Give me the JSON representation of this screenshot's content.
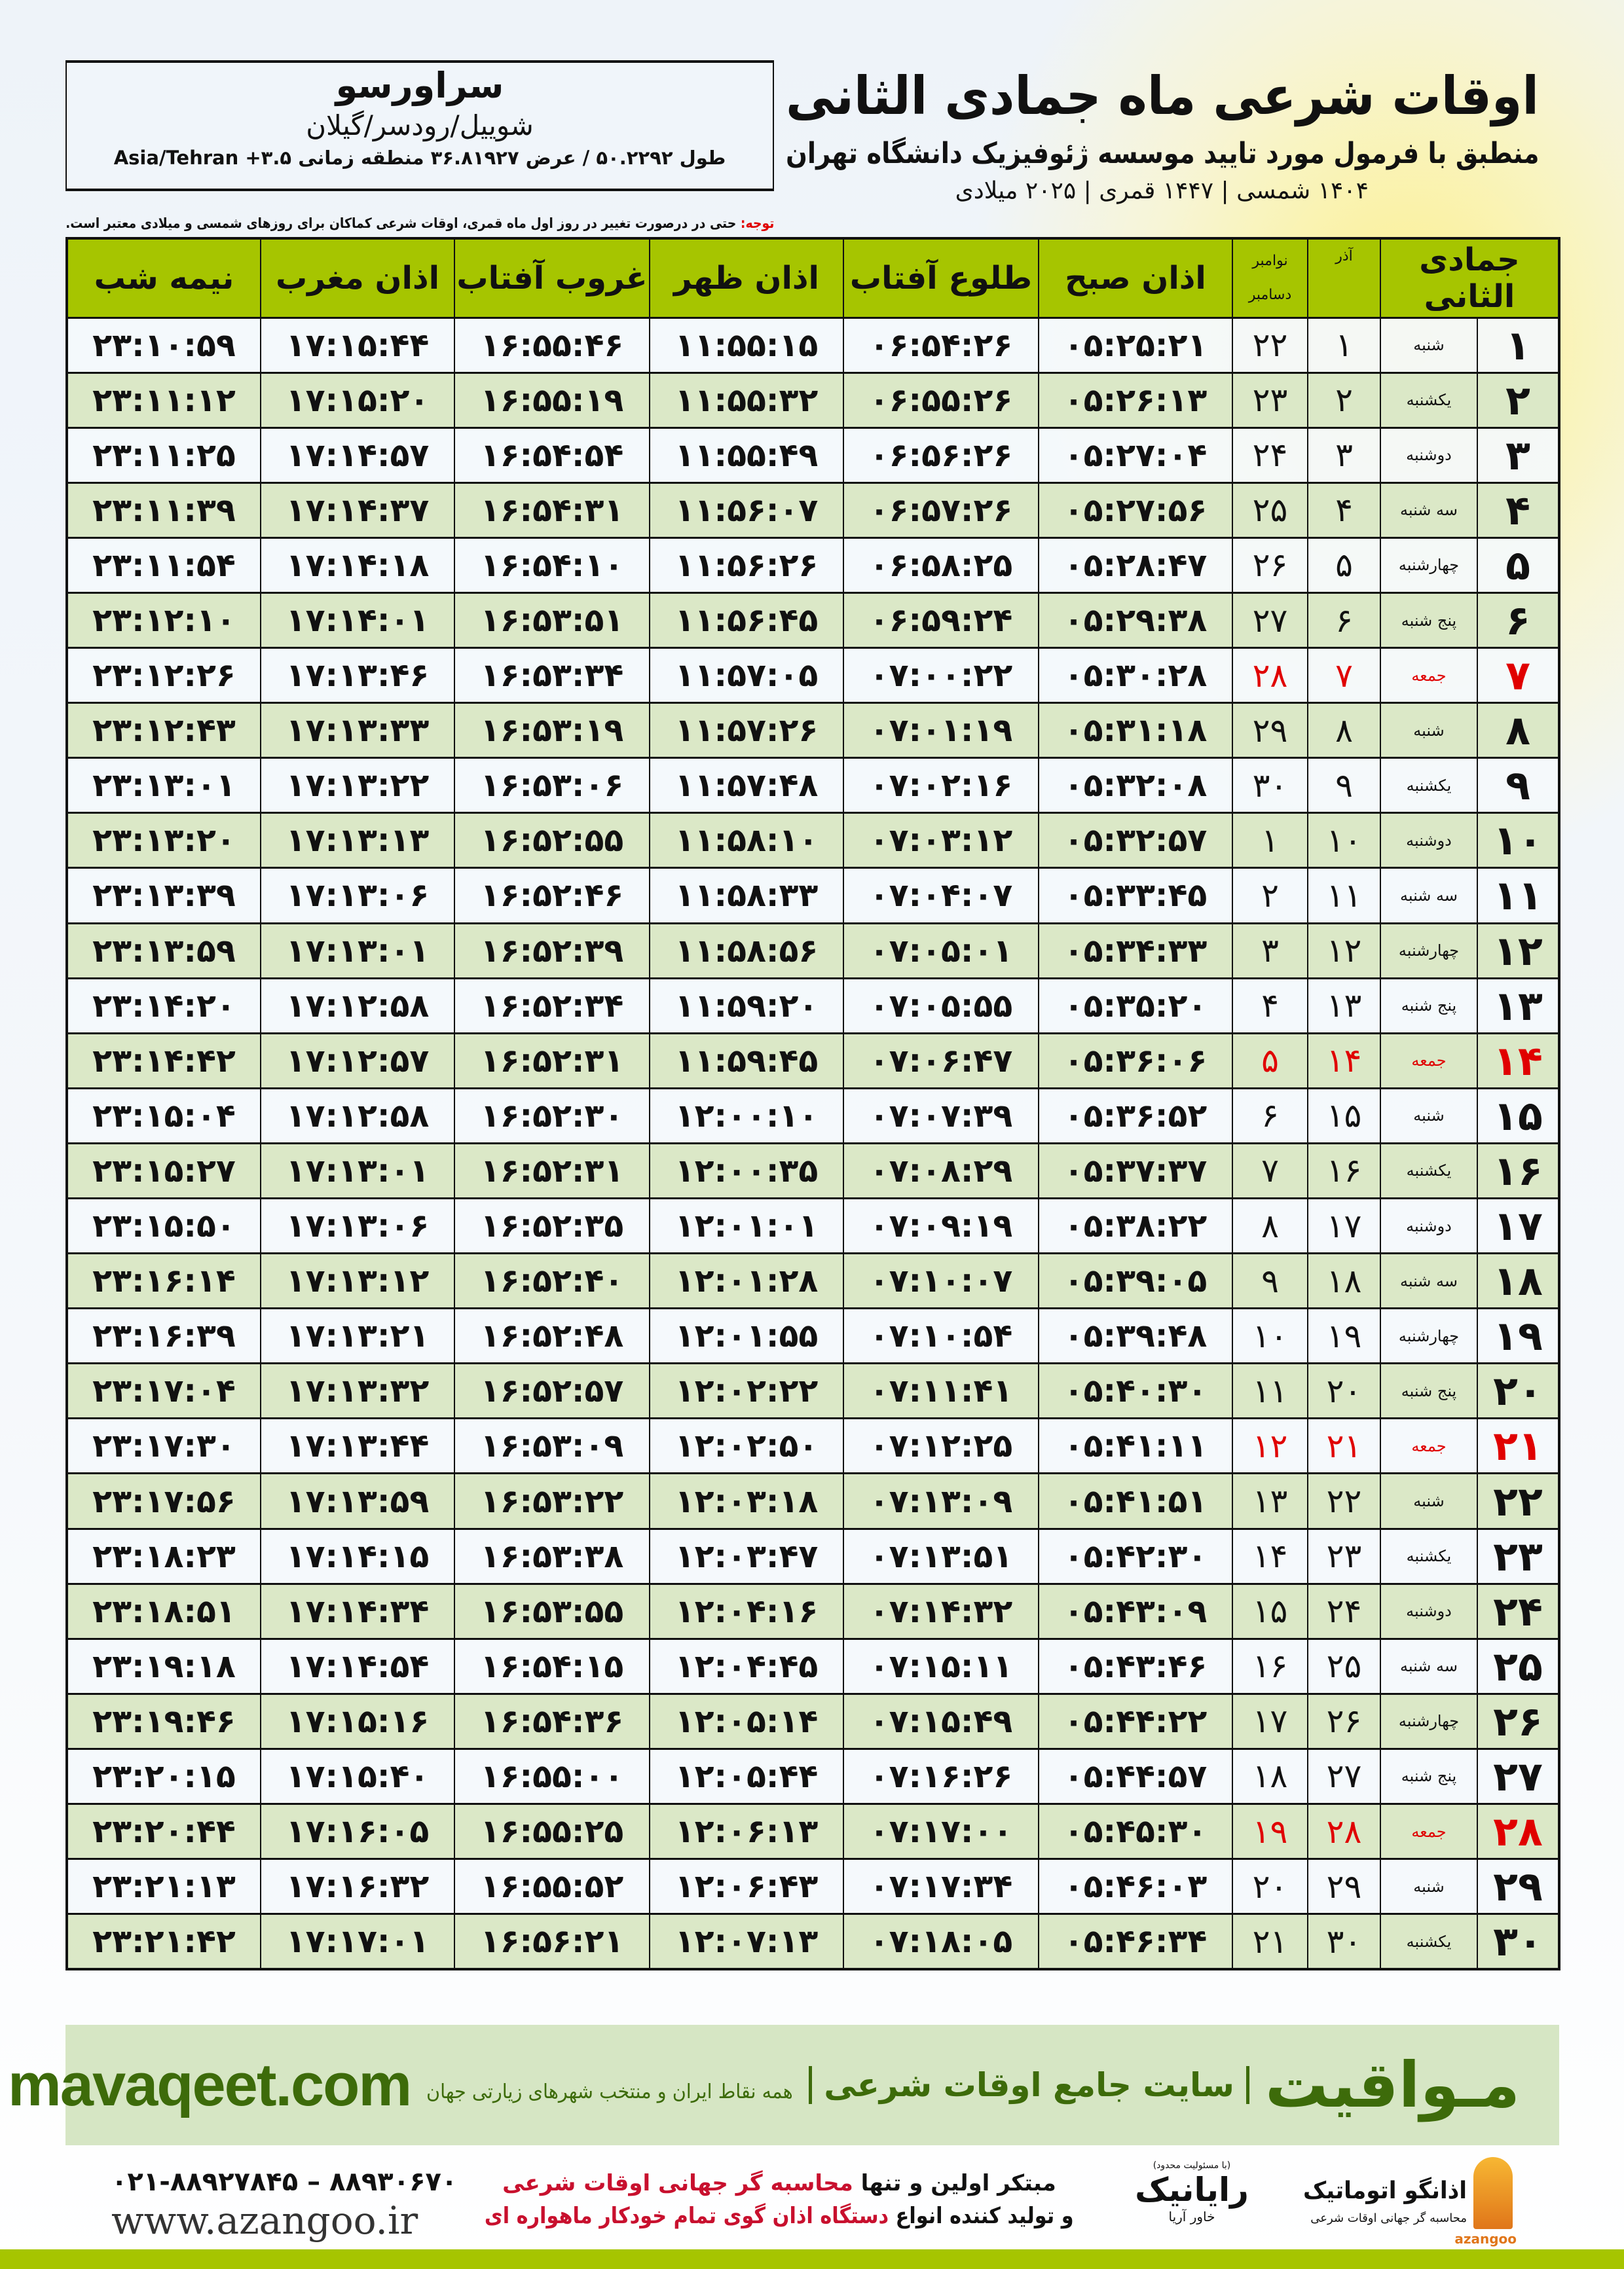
{
  "location": {
    "city": "سراورسو",
    "region": "شوییل/رودسر/گیلان",
    "coordinates": "طول ۵۰.۲۲۹۲ / عرض ۳۶.۸۱۹۲۷ منطقه زمانی ۳.۵+ Asia/Tehran"
  },
  "header": {
    "title": "اوقات شرعی ماه جمادی الثانی",
    "subtitle": "منطبق با فرمول مورد تایید موسسه ژئوفیزیک دانشگاه تهران",
    "years": "۱۴۰۴ شمسی | ۱۴۴۷ قمری | ۲۰۲۵ میلادی"
  },
  "note": {
    "label": "توجه:",
    "text": " حتی در درصورت تغییر در روز اول ماه قمری، اوقات شرعی کماکان برای روزهای شمسی و میلادی معتبر است."
  },
  "colors": {
    "header_green": "#a6c500",
    "holiday_red": "#e00000",
    "alt_row": "#dbe8c7",
    "brand_green": "#3d6b0a"
  },
  "table": {
    "columns": {
      "hijri_month": "جمادی الثانی",
      "azar": "آذر",
      "november": "نوامبر",
      "december": "دسامبر",
      "fajr": "اذان صبح",
      "sunrise": "طلوع آفتاب",
      "dhuhr": "اذان ظهر",
      "sunset": "غروب آفتاب",
      "maghrib": "اذان مغرب",
      "midnight": "نیمه شب"
    },
    "rows": [
      {
        "day": "۱",
        "weekday": "شنبه",
        "azar": "۱",
        "greg": "۲۲",
        "times": [
          "۰۵:۲۵:۲۱",
          "۰۶:۵۴:۲۶",
          "۱۱:۵۵:۱۵",
          "۱۶:۵۵:۴۶",
          "۱۷:۱۵:۴۴",
          "۲۳:۱۰:۵۹"
        ]
      },
      {
        "day": "۲",
        "weekday": "یکشنبه",
        "azar": "۲",
        "greg": "۲۳",
        "times": [
          "۰۵:۲۶:۱۳",
          "۰۶:۵۵:۲۶",
          "۱۱:۵۵:۳۲",
          "۱۶:۵۵:۱۹",
          "۱۷:۱۵:۲۰",
          "۲۳:۱۱:۱۲"
        ]
      },
      {
        "day": "۳",
        "weekday": "دوشنبه",
        "azar": "۳",
        "greg": "۲۴",
        "times": [
          "۰۵:۲۷:۰۴",
          "۰۶:۵۶:۲۶",
          "۱۱:۵۵:۴۹",
          "۱۶:۵۴:۵۴",
          "۱۷:۱۴:۵۷",
          "۲۳:۱۱:۲۵"
        ]
      },
      {
        "day": "۴",
        "weekday": "سه شنبه",
        "azar": "۴",
        "greg": "۲۵",
        "times": [
          "۰۵:۲۷:۵۶",
          "۰۶:۵۷:۲۶",
          "۱۱:۵۶:۰۷",
          "۱۶:۵۴:۳۱",
          "۱۷:۱۴:۳۷",
          "۲۳:۱۱:۳۹"
        ]
      },
      {
        "day": "۵",
        "weekday": "چهارشنبه",
        "azar": "۵",
        "greg": "۲۶",
        "times": [
          "۰۵:۲۸:۴۷",
          "۰۶:۵۸:۲۵",
          "۱۱:۵۶:۲۶",
          "۱۶:۵۴:۱۰",
          "۱۷:۱۴:۱۸",
          "۲۳:۱۱:۵۴"
        ]
      },
      {
        "day": "۶",
        "weekday": "پنج شنبه",
        "azar": "۶",
        "greg": "۲۷",
        "times": [
          "۰۵:۲۹:۳۸",
          "۰۶:۵۹:۲۴",
          "۱۱:۵۶:۴۵",
          "۱۶:۵۳:۵۱",
          "۱۷:۱۴:۰۱",
          "۲۳:۱۲:۱۰"
        ]
      },
      {
        "day": "۷",
        "weekday": "جمعه",
        "azar": "۷",
        "greg": "۲۸",
        "holiday": true,
        "times": [
          "۰۵:۳۰:۲۸",
          "۰۷:۰۰:۲۲",
          "۱۱:۵۷:۰۵",
          "۱۶:۵۳:۳۴",
          "۱۷:۱۳:۴۶",
          "۲۳:۱۲:۲۶"
        ]
      },
      {
        "day": "۸",
        "weekday": "شنبه",
        "azar": "۸",
        "greg": "۲۹",
        "times": [
          "۰۵:۳۱:۱۸",
          "۰۷:۰۱:۱۹",
          "۱۱:۵۷:۲۶",
          "۱۶:۵۳:۱۹",
          "۱۷:۱۳:۳۳",
          "۲۳:۱۲:۴۳"
        ]
      },
      {
        "day": "۹",
        "weekday": "یکشنبه",
        "azar": "۹",
        "greg": "۳۰",
        "times": [
          "۰۵:۳۲:۰۸",
          "۰۷:۰۲:۱۶",
          "۱۱:۵۷:۴۸",
          "۱۶:۵۳:۰۶",
          "۱۷:۱۳:۲۲",
          "۲۳:۱۳:۰۱"
        ]
      },
      {
        "day": "۱۰",
        "weekday": "دوشنبه",
        "azar": "۱۰",
        "greg": "۱",
        "times": [
          "۰۵:۳۲:۵۷",
          "۰۷:۰۳:۱۲",
          "۱۱:۵۸:۱۰",
          "۱۶:۵۲:۵۵",
          "۱۷:۱۳:۱۳",
          "۲۳:۱۳:۲۰"
        ]
      },
      {
        "day": "۱۱",
        "weekday": "سه شنبه",
        "azar": "۱۱",
        "greg": "۲",
        "times": [
          "۰۵:۳۳:۴۵",
          "۰۷:۰۴:۰۷",
          "۱۱:۵۸:۳۳",
          "۱۶:۵۲:۴۶",
          "۱۷:۱۳:۰۶",
          "۲۳:۱۳:۳۹"
        ]
      },
      {
        "day": "۱۲",
        "weekday": "چهارشنبه",
        "azar": "۱۲",
        "greg": "۳",
        "times": [
          "۰۵:۳۴:۳۳",
          "۰۷:۰۵:۰۱",
          "۱۱:۵۸:۵۶",
          "۱۶:۵۲:۳۹",
          "۱۷:۱۳:۰۱",
          "۲۳:۱۳:۵۹"
        ]
      },
      {
        "day": "۱۳",
        "weekday": "پنج شنبه",
        "azar": "۱۳",
        "greg": "۴",
        "times": [
          "۰۵:۳۵:۲۰",
          "۰۷:۰۵:۵۵",
          "۱۱:۵۹:۲۰",
          "۱۶:۵۲:۳۴",
          "۱۷:۱۲:۵۸",
          "۲۳:۱۴:۲۰"
        ]
      },
      {
        "day": "۱۴",
        "weekday": "جمعه",
        "azar": "۱۴",
        "greg": "۵",
        "holiday": true,
        "times": [
          "۰۵:۳۶:۰۶",
          "۰۷:۰۶:۴۷",
          "۱۱:۵۹:۴۵",
          "۱۶:۵۲:۳۱",
          "۱۷:۱۲:۵۷",
          "۲۳:۱۴:۴۲"
        ]
      },
      {
        "day": "۱۵",
        "weekday": "شنبه",
        "azar": "۱۵",
        "greg": "۶",
        "times": [
          "۰۵:۳۶:۵۲",
          "۰۷:۰۷:۳۹",
          "۱۲:۰۰:۱۰",
          "۱۶:۵۲:۳۰",
          "۱۷:۱۲:۵۸",
          "۲۳:۱۵:۰۴"
        ]
      },
      {
        "day": "۱۶",
        "weekday": "یکشنبه",
        "azar": "۱۶",
        "greg": "۷",
        "times": [
          "۰۵:۳۷:۳۷",
          "۰۷:۰۸:۲۹",
          "۱۲:۰۰:۳۵",
          "۱۶:۵۲:۳۱",
          "۱۷:۱۳:۰۱",
          "۲۳:۱۵:۲۷"
        ]
      },
      {
        "day": "۱۷",
        "weekday": "دوشنبه",
        "azar": "۱۷",
        "greg": "۸",
        "times": [
          "۰۵:۳۸:۲۲",
          "۰۷:۰۹:۱۹",
          "۱۲:۰۱:۰۱",
          "۱۶:۵۲:۳۵",
          "۱۷:۱۳:۰۶",
          "۲۳:۱۵:۵۰"
        ]
      },
      {
        "day": "۱۸",
        "weekday": "سه شنبه",
        "azar": "۱۸",
        "greg": "۹",
        "times": [
          "۰۵:۳۹:۰۵",
          "۰۷:۱۰:۰۷",
          "۱۲:۰۱:۲۸",
          "۱۶:۵۲:۴۰",
          "۱۷:۱۳:۱۲",
          "۲۳:۱۶:۱۴"
        ]
      },
      {
        "day": "۱۹",
        "weekday": "چهارشنبه",
        "azar": "۱۹",
        "greg": "۱۰",
        "times": [
          "۰۵:۳۹:۴۸",
          "۰۷:۱۰:۵۴",
          "۱۲:۰۱:۵۵",
          "۱۶:۵۲:۴۸",
          "۱۷:۱۳:۲۱",
          "۲۳:۱۶:۳۹"
        ]
      },
      {
        "day": "۲۰",
        "weekday": "پنج شنبه",
        "azar": "۲۰",
        "greg": "۱۱",
        "times": [
          "۰۵:۴۰:۳۰",
          "۰۷:۱۱:۴۱",
          "۱۲:۰۲:۲۲",
          "۱۶:۵۲:۵۷",
          "۱۷:۱۳:۳۲",
          "۲۳:۱۷:۰۴"
        ]
      },
      {
        "day": "۲۱",
        "weekday": "جمعه",
        "azar": "۲۱",
        "greg": "۱۲",
        "holiday": true,
        "times": [
          "۰۵:۴۱:۱۱",
          "۰۷:۱۲:۲۵",
          "۱۲:۰۲:۵۰",
          "۱۶:۵۳:۰۹",
          "۱۷:۱۳:۴۴",
          "۲۳:۱۷:۳۰"
        ]
      },
      {
        "day": "۲۲",
        "weekday": "شنبه",
        "azar": "۲۲",
        "greg": "۱۳",
        "times": [
          "۰۵:۴۱:۵۱",
          "۰۷:۱۳:۰۹",
          "۱۲:۰۳:۱۸",
          "۱۶:۵۳:۲۲",
          "۱۷:۱۳:۵۹",
          "۲۳:۱۷:۵۶"
        ]
      },
      {
        "day": "۲۳",
        "weekday": "یکشنبه",
        "azar": "۲۳",
        "greg": "۱۴",
        "times": [
          "۰۵:۴۲:۳۰",
          "۰۷:۱۳:۵۱",
          "۱۲:۰۳:۴۷",
          "۱۶:۵۳:۳۸",
          "۱۷:۱۴:۱۵",
          "۲۳:۱۸:۲۳"
        ]
      },
      {
        "day": "۲۴",
        "weekday": "دوشنبه",
        "azar": "۲۴",
        "greg": "۱۵",
        "times": [
          "۰۵:۴۳:۰۹",
          "۰۷:۱۴:۳۲",
          "۱۲:۰۴:۱۶",
          "۱۶:۵۳:۵۵",
          "۱۷:۱۴:۳۴",
          "۲۳:۱۸:۵۱"
        ]
      },
      {
        "day": "۲۵",
        "weekday": "سه شنبه",
        "azar": "۲۵",
        "greg": "۱۶",
        "times": [
          "۰۵:۴۳:۴۶",
          "۰۷:۱۵:۱۱",
          "۱۲:۰۴:۴۵",
          "۱۶:۵۴:۱۵",
          "۱۷:۱۴:۵۴",
          "۲۳:۱۹:۱۸"
        ]
      },
      {
        "day": "۲۶",
        "weekday": "چهارشنبه",
        "azar": "۲۶",
        "greg": "۱۷",
        "times": [
          "۰۵:۴۴:۲۲",
          "۰۷:۱۵:۴۹",
          "۱۲:۰۵:۱۴",
          "۱۶:۵۴:۳۶",
          "۱۷:۱۵:۱۶",
          "۲۳:۱۹:۴۶"
        ]
      },
      {
        "day": "۲۷",
        "weekday": "پنج شنبه",
        "azar": "۲۷",
        "greg": "۱۸",
        "times": [
          "۰۵:۴۴:۵۷",
          "۰۷:۱۶:۲۶",
          "۱۲:۰۵:۴۴",
          "۱۶:۵۵:۰۰",
          "۱۷:۱۵:۴۰",
          "۲۳:۲۰:۱۵"
        ]
      },
      {
        "day": "۲۸",
        "weekday": "جمعه",
        "azar": "۲۸",
        "greg": "۱۹",
        "holiday": true,
        "times": [
          "۰۵:۴۵:۳۰",
          "۰۷:۱۷:۰۰",
          "۱۲:۰۶:۱۳",
          "۱۶:۵۵:۲۵",
          "۱۷:۱۶:۰۵",
          "۲۳:۲۰:۴۴"
        ]
      },
      {
        "day": "۲۹",
        "weekday": "شنبه",
        "azar": "۲۹",
        "greg": "۲۰",
        "times": [
          "۰۵:۴۶:۰۳",
          "۰۷:۱۷:۳۴",
          "۱۲:۰۶:۴۳",
          "۱۶:۵۵:۵۲",
          "۱۷:۱۶:۳۲",
          "۲۳:۲۱:۱۳"
        ]
      },
      {
        "day": "۳۰",
        "weekday": "یکشنبه",
        "azar": "۳۰",
        "greg": "۲۱",
        "times": [
          "۰۵:۴۶:۳۴",
          "۰۷:۱۸:۰۵",
          "۱۲:۰۷:۱۳",
          "۱۶:۵۶:۲۱",
          "۱۷:۱۷:۰۱",
          "۲۳:۲۱:۴۲"
        ]
      }
    ]
  },
  "banner": {
    "brand": "مـواقیت",
    "tagline": "سایت جامع اوقات شرعی",
    "coverage": "همه نقاط ایران و منتخب شهرهای زیارتی جهان",
    "site": "mavaqeet.com"
  },
  "footer": {
    "phone": "۰۲۱-۸۸۹۲۷۸۴۵ – ۸۸۹۳۰۶۷۰",
    "website": "www.azangoo.ir",
    "line1_prefix": "مبتکر اولین و تنها ",
    "line1_highlight": "محاسبه گر جهانی اوقات شرعی",
    "line2_prefix": "و تولید کننده انواع ",
    "line2_highlight": "دستگاه اذان گوی تمام خودکار ماهواره ای",
    "rayanik_note": "(با مسئولیت محدود)",
    "rayanik_name": "رایانیک",
    "rayanik_sub": "خاور آریا",
    "azangoo_name": "اذانگو اتوماتیک",
    "azangoo_tag": "محاسبه گر جهانی اوقات شرعی",
    "azangoo_latin": "azangoo"
  }
}
